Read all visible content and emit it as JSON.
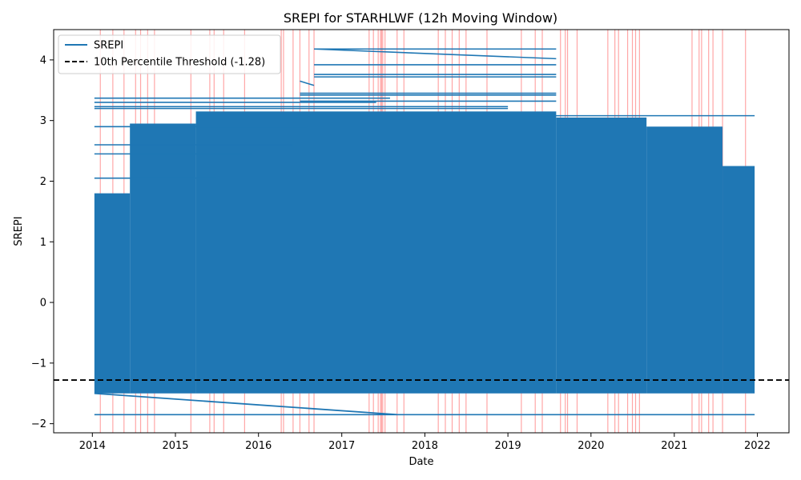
{
  "chart_data": {
    "type": "line",
    "title": "SREPI for STARHLWF (12h Moving Window)",
    "xlabel": "Date",
    "ylabel": "SREPI",
    "xlim": [
      "2013-07-15",
      "2022-05-20"
    ],
    "ylim": [
      -2.15,
      4.5
    ],
    "x_ticks": [
      "2014",
      "2015",
      "2016",
      "2017",
      "2018",
      "2019",
      "2020",
      "2021",
      "2022"
    ],
    "y_ticks": [
      -2,
      -1,
      0,
      1,
      2,
      3,
      4
    ],
    "legend": {
      "position": "upper-left",
      "entries": [
        "SREPI",
        "10th Percentile Threshold (-1.28)"
      ]
    },
    "colors": {
      "series": "#1f77b4",
      "threshold": "#000000",
      "event_lines": "#ff0000"
    },
    "threshold": {
      "name": "10th Percentile Threshold (-1.28)",
      "value": -1.28
    },
    "series": [
      {
        "name": "SREPI",
        "dense_band": [
          {
            "start": "2014-01-10",
            "end": "2014-06-15",
            "min": -1.5,
            "max": 1.8
          },
          {
            "start": "2014-06-15",
            "end": "2015-04-01",
            "min": -1.5,
            "max": 2.95
          },
          {
            "start": "2015-04-01",
            "end": "2019-08-01",
            "min": -1.5,
            "max": 3.15
          },
          {
            "start": "2019-08-01",
            "end": "2020-09-01",
            "min": -1.5,
            "max": 3.05
          },
          {
            "start": "2020-09-01",
            "end": "2021-08-01",
            "min": -1.5,
            "max": 2.9
          },
          {
            "start": "2021-08-01",
            "end": "2021-12-20",
            "min": -1.5,
            "max": 2.25
          }
        ],
        "sweep_lines": [
          {
            "start": "2014-01-10",
            "end": "2017-08-01",
            "y": 3.37
          },
          {
            "start": "2014-01-10",
            "end": "2017-06-01",
            "y": 3.3
          },
          {
            "start": "2014-01-10",
            "end": "2019-01-01",
            "y": 3.23
          },
          {
            "start": "2014-01-10",
            "end": "2019-01-01",
            "y": 3.2
          },
          {
            "start": "2014-01-10",
            "end": "2016-08-01",
            "y": 2.9
          },
          {
            "start": "2014-01-10",
            "end": "2016-06-01",
            "y": 2.6
          },
          {
            "start": "2014-01-10",
            "end": "2015-12-01",
            "y": 2.45
          },
          {
            "start": "2014-01-10",
            "end": "2015-07-01",
            "y": 2.05
          },
          {
            "start": "2016-09-01",
            "end": "2019-08-01",
            "y": 4.18
          },
          {
            "start": "2016-09-01",
            "end": "2019-08-01",
            "y": 3.92
          },
          {
            "start": "2016-09-01",
            "end": "2019-08-01",
            "y": 3.76
          },
          {
            "start": "2016-09-01",
            "end": "2019-08-01",
            "y": 3.72
          },
          {
            "start": "2016-07-01",
            "end": "2019-08-01",
            "y": 3.45
          },
          {
            "start": "2016-07-01",
            "end": "2019-08-01",
            "y": 3.42
          },
          {
            "start": "2016-07-01",
            "end": "2019-08-01",
            "y": 3.32
          },
          {
            "start": "2019-04-01",
            "end": "2021-12-20",
            "y": 3.08
          },
          {
            "start": "2014-01-10",
            "end": "2021-12-20",
            "y": -1.85
          }
        ],
        "key_points": [
          {
            "x": "2014-01-10",
            "y": -1.5
          },
          {
            "x": "2017-09-01",
            "y": -1.85
          },
          {
            "x": "2016-09-01",
            "y": 4.18
          },
          {
            "x": "2019-08-01",
            "y": 4.02
          },
          {
            "x": "2016-07-01",
            "y": 3.65
          },
          {
            "x": "2016-09-01",
            "y": 3.58
          }
        ]
      }
    ],
    "event_lines": [
      "2014-02-05",
      "2014-04-01",
      "2014-05-20",
      "2014-07-10",
      "2014-08-01",
      "2014-09-01",
      "2014-10-01",
      "2015-03-10",
      "2015-06-01",
      "2015-06-20",
      "2015-08-01",
      "2015-11-01",
      "2016-04-10",
      "2016-04-20",
      "2016-06-01",
      "2016-07-01",
      "2016-08-10",
      "2016-09-01",
      "2017-05-01",
      "2017-05-20",
      "2017-06-10",
      "2017-06-20",
      "2017-06-25",
      "2017-06-30",
      "2017-07-10",
      "2017-09-01",
      "2017-10-01",
      "2018-03-01",
      "2018-04-01",
      "2018-05-01",
      "2018-06-01",
      "2018-07-01",
      "2018-10-01",
      "2019-03-01",
      "2019-05-01",
      "2019-06-01",
      "2019-08-20",
      "2019-09-10",
      "2019-09-20",
      "2019-11-01",
      "2020-03-15",
      "2020-04-15",
      "2020-05-01",
      "2020-06-10",
      "2020-07-01",
      "2020-07-15",
      "2020-08-01",
      "2021-03-20",
      "2021-04-20",
      "2021-05-01",
      "2021-06-01",
      "2021-06-20",
      "2021-08-01",
      "2021-11-10"
    ]
  }
}
